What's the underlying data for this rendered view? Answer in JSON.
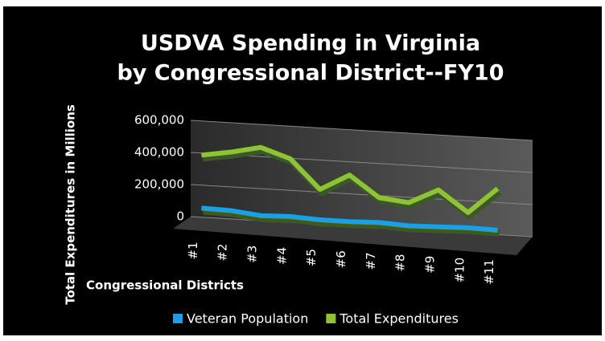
{
  "chart_data": {
    "type": "line",
    "title": "USDVA Spending in Virginia",
    "subtitle": "by Congressional District--FY10",
    "y_label": "Total Expenditures in Millions",
    "x_label": "Congressional Districts",
    "categories": [
      "#1",
      "#2",
      "#3",
      "#4",
      "#5",
      "#6",
      "#7",
      "#8",
      "#9",
      "#10",
      "#11"
    ],
    "series": [
      {
        "name": "Veteran Population",
        "color": "#1f9fe0",
        "values": [
          100000,
          95000,
          75000,
          80000,
          70000,
          70000,
          75000,
          65000,
          70000,
          75000,
          70000
        ]
      },
      {
        "name": "Total Expenditures",
        "color": "#8fc23a",
        "values": [
          430000,
          460000,
          500000,
          440000,
          260000,
          360000,
          230000,
          210000,
          300000,
          170000,
          330000
        ]
      }
    ],
    "ylim": [
      0,
      600000
    ],
    "yticks": [
      0,
      {
        "value": 200000,
        "label": "200,000"
      },
      {
        "value": 400000,
        "label": "400,000"
      },
      {
        "value": 600000,
        "label": "600,000"
      }
    ],
    "grid": true,
    "legend": "bottom"
  }
}
